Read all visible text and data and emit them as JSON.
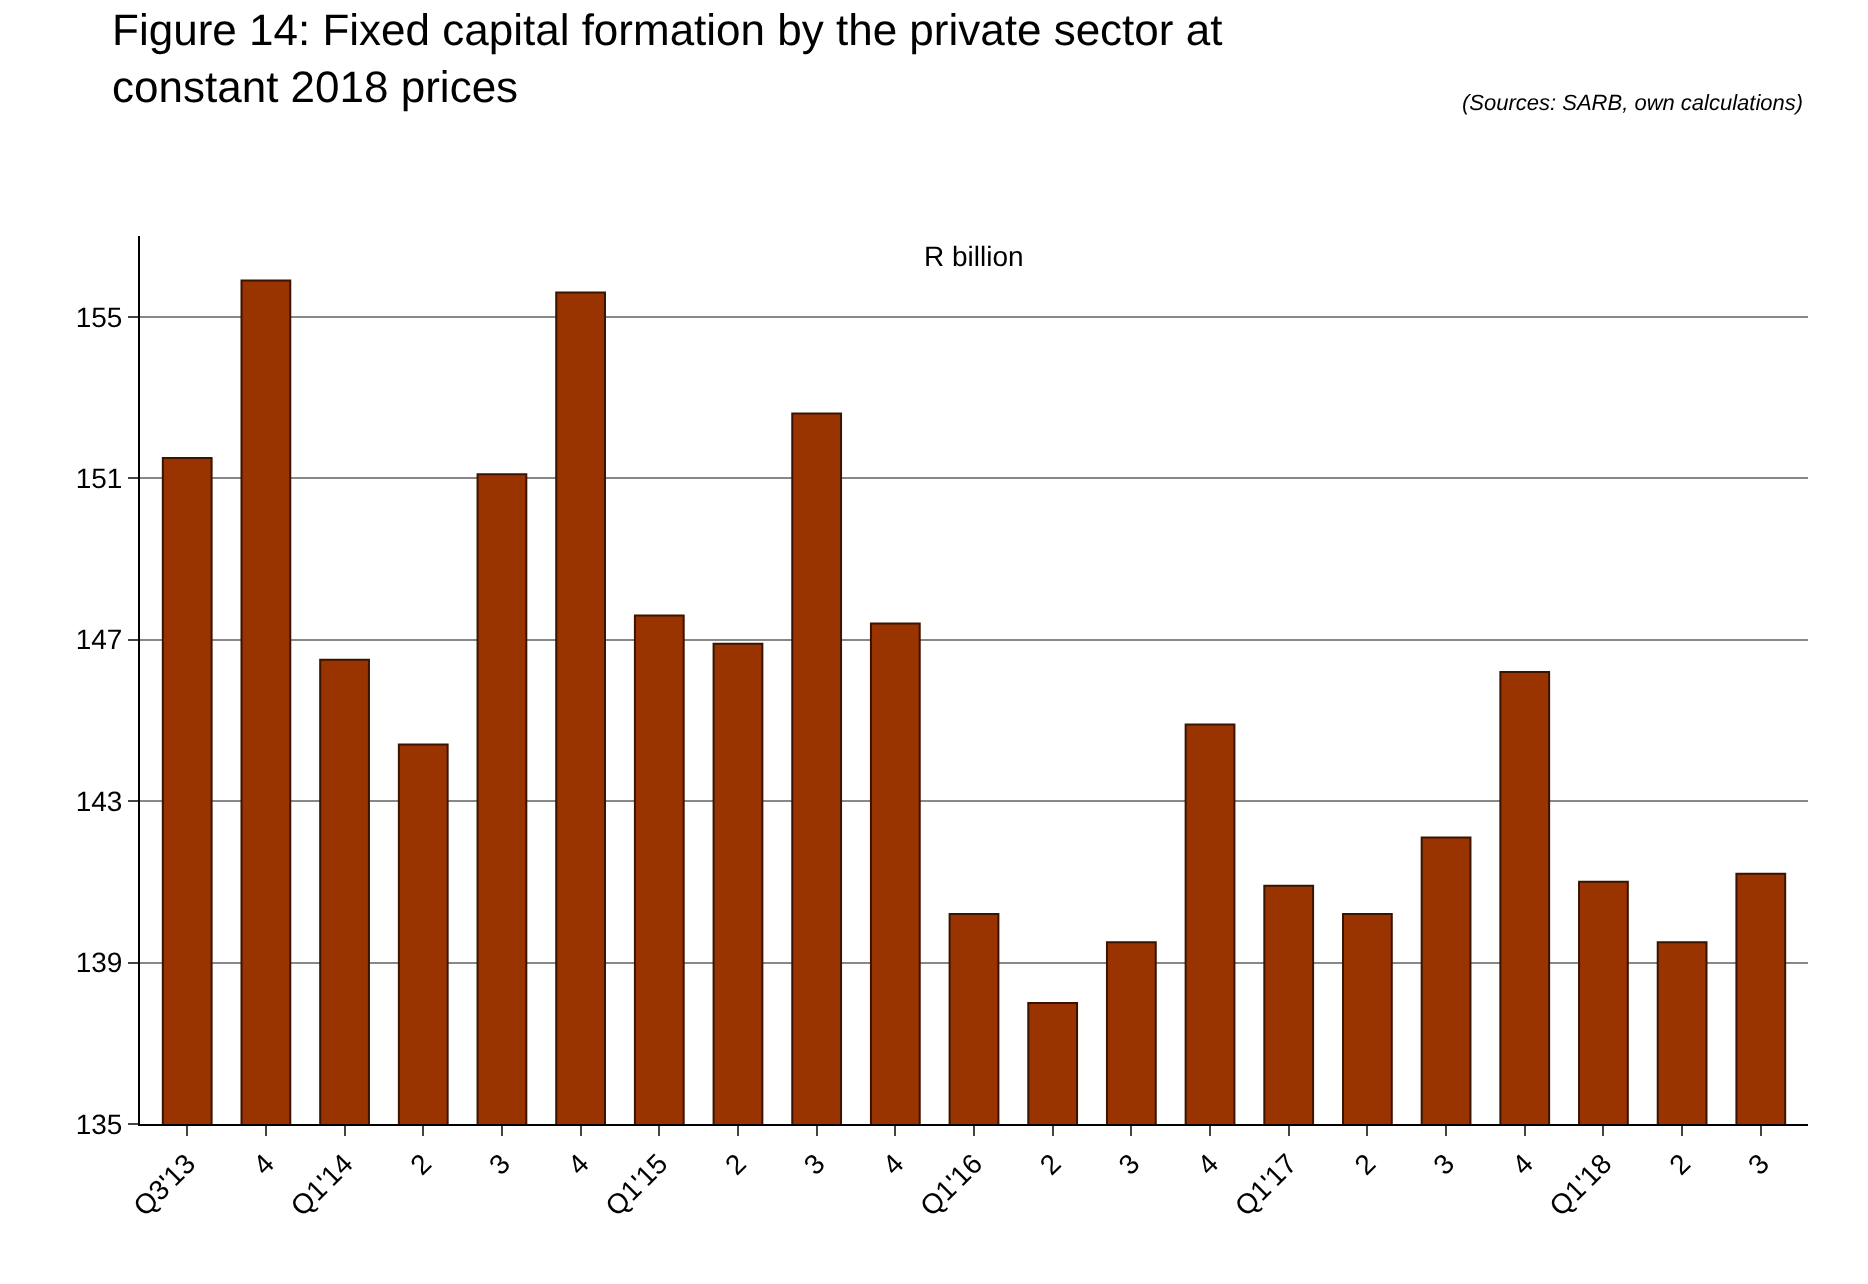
{
  "chart_data": {
    "type": "bar",
    "title": "Figure 14: Fixed capital formation by the private sector at constant 2018 prices",
    "annotations": [
      "(Sources: SARB, own calculations)",
      "R billion"
    ],
    "categories": [
      "Q3'13",
      "4",
      "Q1'14",
      "2",
      "3",
      "4",
      "Q1'15",
      "2",
      "3",
      "4",
      "Q1'16",
      "2",
      "3",
      "4",
      "Q1'17",
      "2",
      "3",
      "4",
      "Q1'18",
      "2",
      "3"
    ],
    "values": [
      151.5,
      155.9,
      146.5,
      144.4,
      151.1,
      155.6,
      147.6,
      146.9,
      152.6,
      147.4,
      140.2,
      138.0,
      139.5,
      144.9,
      140.9,
      140.2,
      142.1,
      146.2,
      141.0,
      139.5,
      141.2
    ],
    "color": "#993300",
    "ylim": [
      135,
      157
    ],
    "yticks": [
      135,
      139,
      143,
      147,
      151,
      155
    ],
    "grid": "y"
  }
}
